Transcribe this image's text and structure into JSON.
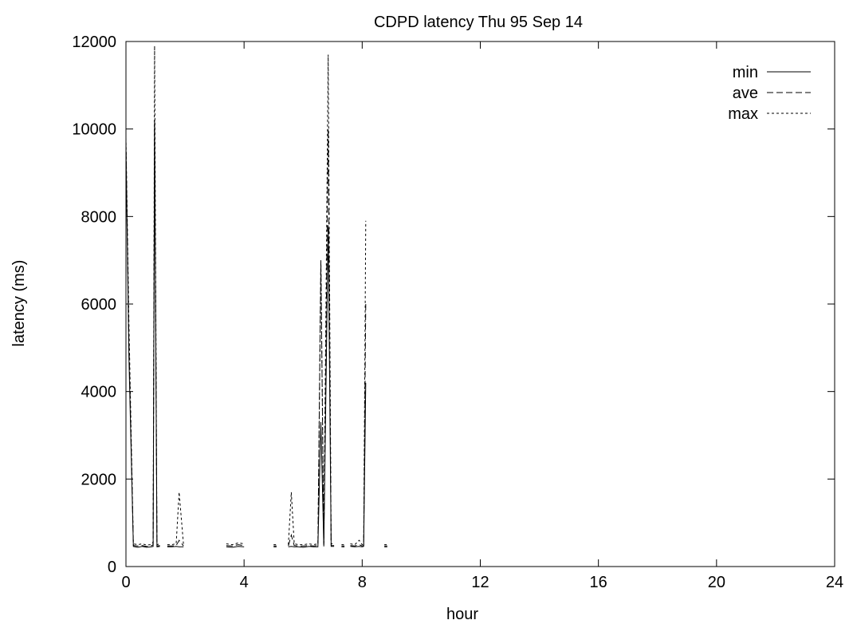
{
  "chart_data": {
    "type": "line",
    "title": "CDPD latency Thu 95 Sep 14",
    "xlabel": "hour",
    "ylabel": "latency (ms)",
    "xlim": [
      0,
      24
    ],
    "ylim": [
      0,
      12000
    ],
    "xticks": [
      0,
      4,
      8,
      12,
      16,
      20,
      24
    ],
    "yticks": [
      0,
      2000,
      4000,
      6000,
      8000,
      10000,
      12000
    ],
    "grid": false,
    "legend": "top-right",
    "series": [
      {
        "name": "min",
        "dash": "solid",
        "segments": [
          [
            [
              0.0,
              9600
            ],
            [
              0.1,
              4800
            ],
            [
              0.25,
              460
            ],
            [
              0.4,
              440
            ],
            [
              0.55,
              460
            ],
            [
              0.7,
              440
            ],
            [
              0.85,
              450
            ],
            [
              0.92,
              460
            ],
            [
              0.97,
              10100
            ],
            [
              1.05,
              450
            ],
            [
              1.15,
              460
            ]
          ],
          [
            [
              1.4,
              450
            ],
            [
              1.55,
              450
            ],
            [
              1.7,
              460
            ],
            [
              1.8,
              450
            ],
            [
              1.95,
              450
            ]
          ],
          [
            [
              3.4,
              450
            ],
            [
              3.6,
              440
            ],
            [
              3.8,
              460
            ],
            [
              4.0,
              450
            ]
          ],
          [
            [
              5.0,
              450
            ],
            [
              5.1,
              450
            ]
          ],
          [
            [
              5.5,
              450
            ],
            [
              5.6,
              460
            ],
            [
              5.7,
              450
            ],
            [
              5.85,
              450
            ],
            [
              6.0,
              440
            ],
            [
              6.2,
              460
            ],
            [
              6.35,
              450
            ],
            [
              6.5,
              450
            ],
            [
              6.6,
              3300
            ],
            [
              6.7,
              460
            ],
            [
              6.85,
              7800
            ],
            [
              6.95,
              460
            ],
            [
              7.05,
              460
            ]
          ],
          [
            [
              7.3,
              450
            ],
            [
              7.4,
              450
            ]
          ],
          [
            [
              7.6,
              460
            ],
            [
              7.75,
              450
            ],
            [
              7.9,
              460
            ],
            [
              8.0,
              450
            ],
            [
              8.05,
              460
            ],
            [
              8.12,
              4200
            ]
          ],
          [
            [
              8.75,
              450
            ],
            [
              8.85,
              450
            ]
          ]
        ]
      },
      {
        "name": "ave",
        "dash": "8,4",
        "segments": [
          [
            [
              0.0,
              9700
            ],
            [
              0.1,
              5200
            ],
            [
              0.25,
              480
            ],
            [
              0.4,
              470
            ],
            [
              0.55,
              480
            ],
            [
              0.7,
              460
            ],
            [
              0.85,
              470
            ],
            [
              0.92,
              500
            ],
            [
              0.97,
              10200
            ],
            [
              1.05,
              470
            ],
            [
              1.15,
              480
            ]
          ],
          [
            [
              1.4,
              470
            ],
            [
              1.55,
              470
            ],
            [
              1.7,
              480
            ],
            [
              1.8,
              600
            ],
            [
              1.95,
              470
            ]
          ],
          [
            [
              3.4,
              480
            ],
            [
              3.6,
              470
            ],
            [
              3.8,
              500
            ],
            [
              4.0,
              480
            ]
          ],
          [
            [
              5.0,
              470
            ],
            [
              5.1,
              470
            ]
          ],
          [
            [
              5.5,
              470
            ],
            [
              5.6,
              720
            ],
            [
              5.7,
              480
            ],
            [
              5.85,
              470
            ],
            [
              6.0,
              470
            ],
            [
              6.2,
              480
            ],
            [
              6.35,
              470
            ],
            [
              6.5,
              480
            ],
            [
              6.6,
              7000
            ],
            [
              6.7,
              500
            ],
            [
              6.85,
              10000
            ],
            [
              6.95,
              480
            ],
            [
              7.05,
              480
            ]
          ],
          [
            [
              7.3,
              470
            ],
            [
              7.4,
              470
            ]
          ],
          [
            [
              7.6,
              480
            ],
            [
              7.75,
              470
            ],
            [
              7.9,
              500
            ],
            [
              8.0,
              470
            ],
            [
              8.05,
              480
            ],
            [
              8.12,
              6000
            ]
          ],
          [
            [
              8.75,
              470
            ],
            [
              8.85,
              470
            ]
          ]
        ]
      },
      {
        "name": "max",
        "dash": "3,3",
        "segments": [
          [
            [
              0.0,
              9800
            ],
            [
              0.1,
              5600
            ],
            [
              0.25,
              520
            ],
            [
              0.4,
              500
            ],
            [
              0.55,
              520
            ],
            [
              0.7,
              490
            ],
            [
              0.85,
              500
            ],
            [
              0.92,
              560
            ],
            [
              0.97,
              11900
            ],
            [
              1.05,
              500
            ],
            [
              1.15,
              520
            ]
          ],
          [
            [
              1.4,
              500
            ],
            [
              1.55,
              500
            ],
            [
              1.7,
              520
            ],
            [
              1.8,
              1700
            ],
            [
              1.95,
              500
            ]
          ],
          [
            [
              3.4,
              520
            ],
            [
              3.6,
              500
            ],
            [
              3.8,
              540
            ],
            [
              4.0,
              520
            ]
          ],
          [
            [
              5.0,
              500
            ],
            [
              5.1,
              500
            ]
          ],
          [
            [
              5.5,
              500
            ],
            [
              5.6,
              1700
            ],
            [
              5.7,
              520
            ],
            [
              5.85,
              500
            ],
            [
              6.0,
              500
            ],
            [
              6.2,
              520
            ],
            [
              6.35,
              500
            ],
            [
              6.5,
              520
            ],
            [
              6.6,
              7000
            ],
            [
              6.7,
              540
            ],
            [
              6.85,
              11700
            ],
            [
              6.95,
              520
            ],
            [
              7.05,
              520
            ]
          ],
          [
            [
              7.3,
              500
            ],
            [
              7.4,
              500
            ]
          ],
          [
            [
              7.6,
              520
            ],
            [
              7.75,
              500
            ],
            [
              7.9,
              600
            ],
            [
              8.0,
              500
            ],
            [
              8.05,
              520
            ],
            [
              8.12,
              7900
            ]
          ],
          [
            [
              8.75,
              500
            ],
            [
              8.85,
              500
            ]
          ]
        ]
      }
    ]
  }
}
